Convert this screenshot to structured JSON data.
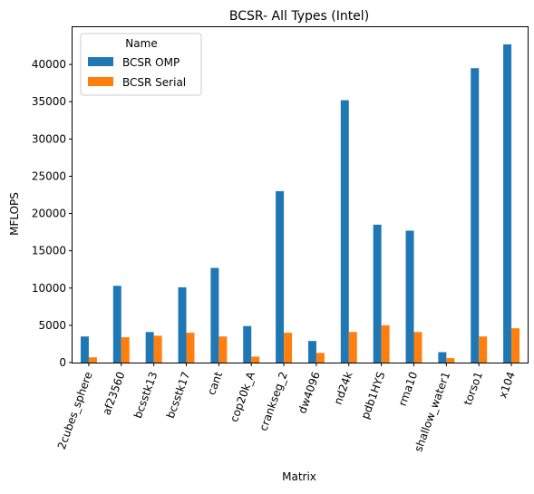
{
  "chart_data": {
    "type": "bar",
    "title": "BCSR- All Types (Intel)",
    "xlabel": "Matrix",
    "ylabel": "MFLOPS",
    "ylim": [
      0,
      45000
    ],
    "yticks": [
      0,
      5000,
      10000,
      15000,
      20000,
      25000,
      30000,
      35000,
      40000
    ],
    "grid": false,
    "legend": {
      "title": "Name",
      "placement": "top-left"
    },
    "categories": [
      "2cubes_sphere",
      "af23560",
      "bcsstk13",
      "bcsstk17",
      "cant",
      "cop20k_A",
      "crankseg_2",
      "dw4096",
      "nd24k",
      "pdb1HYS",
      "rma10",
      "shallow_water1",
      "torso1",
      "x104"
    ],
    "series": [
      {
        "name": "BCSR OMP",
        "color": "#1f77b4",
        "values": [
          3500,
          10300,
          4100,
          10100,
          12700,
          4900,
          23000,
          2900,
          35200,
          18500,
          17700,
          1400,
          39500,
          42700
        ]
      },
      {
        "name": "BCSR Serial",
        "color": "#ff7f0e",
        "values": [
          700,
          3400,
          3600,
          4000,
          3500,
          800,
          4000,
          1300,
          4100,
          5000,
          4100,
          600,
          3500,
          4600
        ]
      }
    ]
  }
}
